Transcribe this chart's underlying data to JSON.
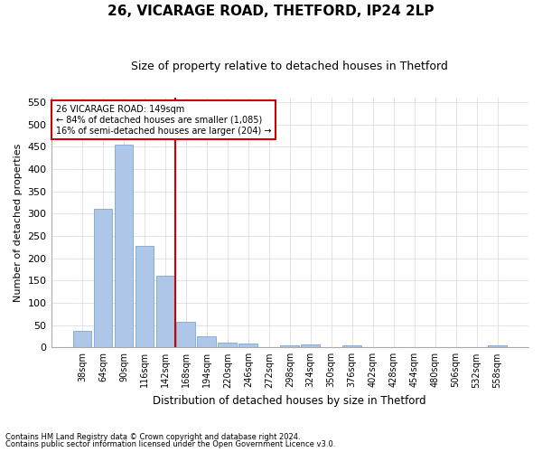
{
  "title": "26, VICARAGE ROAD, THETFORD, IP24 2LP",
  "subtitle": "Size of property relative to detached houses in Thetford",
  "xlabel": "Distribution of detached houses by size in Thetford",
  "ylabel": "Number of detached properties",
  "footnote1": "Contains HM Land Registry data © Crown copyright and database right 2024.",
  "footnote2": "Contains public sector information licensed under the Open Government Licence v3.0.",
  "categories": [
    "38sqm",
    "64sqm",
    "90sqm",
    "116sqm",
    "142sqm",
    "168sqm",
    "194sqm",
    "220sqm",
    "246sqm",
    "272sqm",
    "298sqm",
    "324sqm",
    "350sqm",
    "376sqm",
    "402sqm",
    "428sqm",
    "454sqm",
    "480sqm",
    "506sqm",
    "532sqm",
    "558sqm"
  ],
  "values": [
    38,
    310,
    455,
    227,
    160,
    58,
    25,
    10,
    8,
    0,
    4,
    6,
    0,
    4,
    0,
    0,
    0,
    0,
    0,
    0,
    4
  ],
  "bar_color": "#aec6e8",
  "bar_edge_color": "#6699cc",
  "ylim": [
    0,
    560
  ],
  "yticks": [
    0,
    50,
    100,
    150,
    200,
    250,
    300,
    350,
    400,
    450,
    500,
    550
  ],
  "property_label": "26 VICARAGE ROAD: 149sqm",
  "pct_smaller": "84% of detached houses are smaller (1,085)",
  "pct_larger": "16% of semi-detached houses are larger (204)",
  "vline_color": "#cc0000",
  "background_color": "#ffffff",
  "grid_color": "#d0d8e8"
}
